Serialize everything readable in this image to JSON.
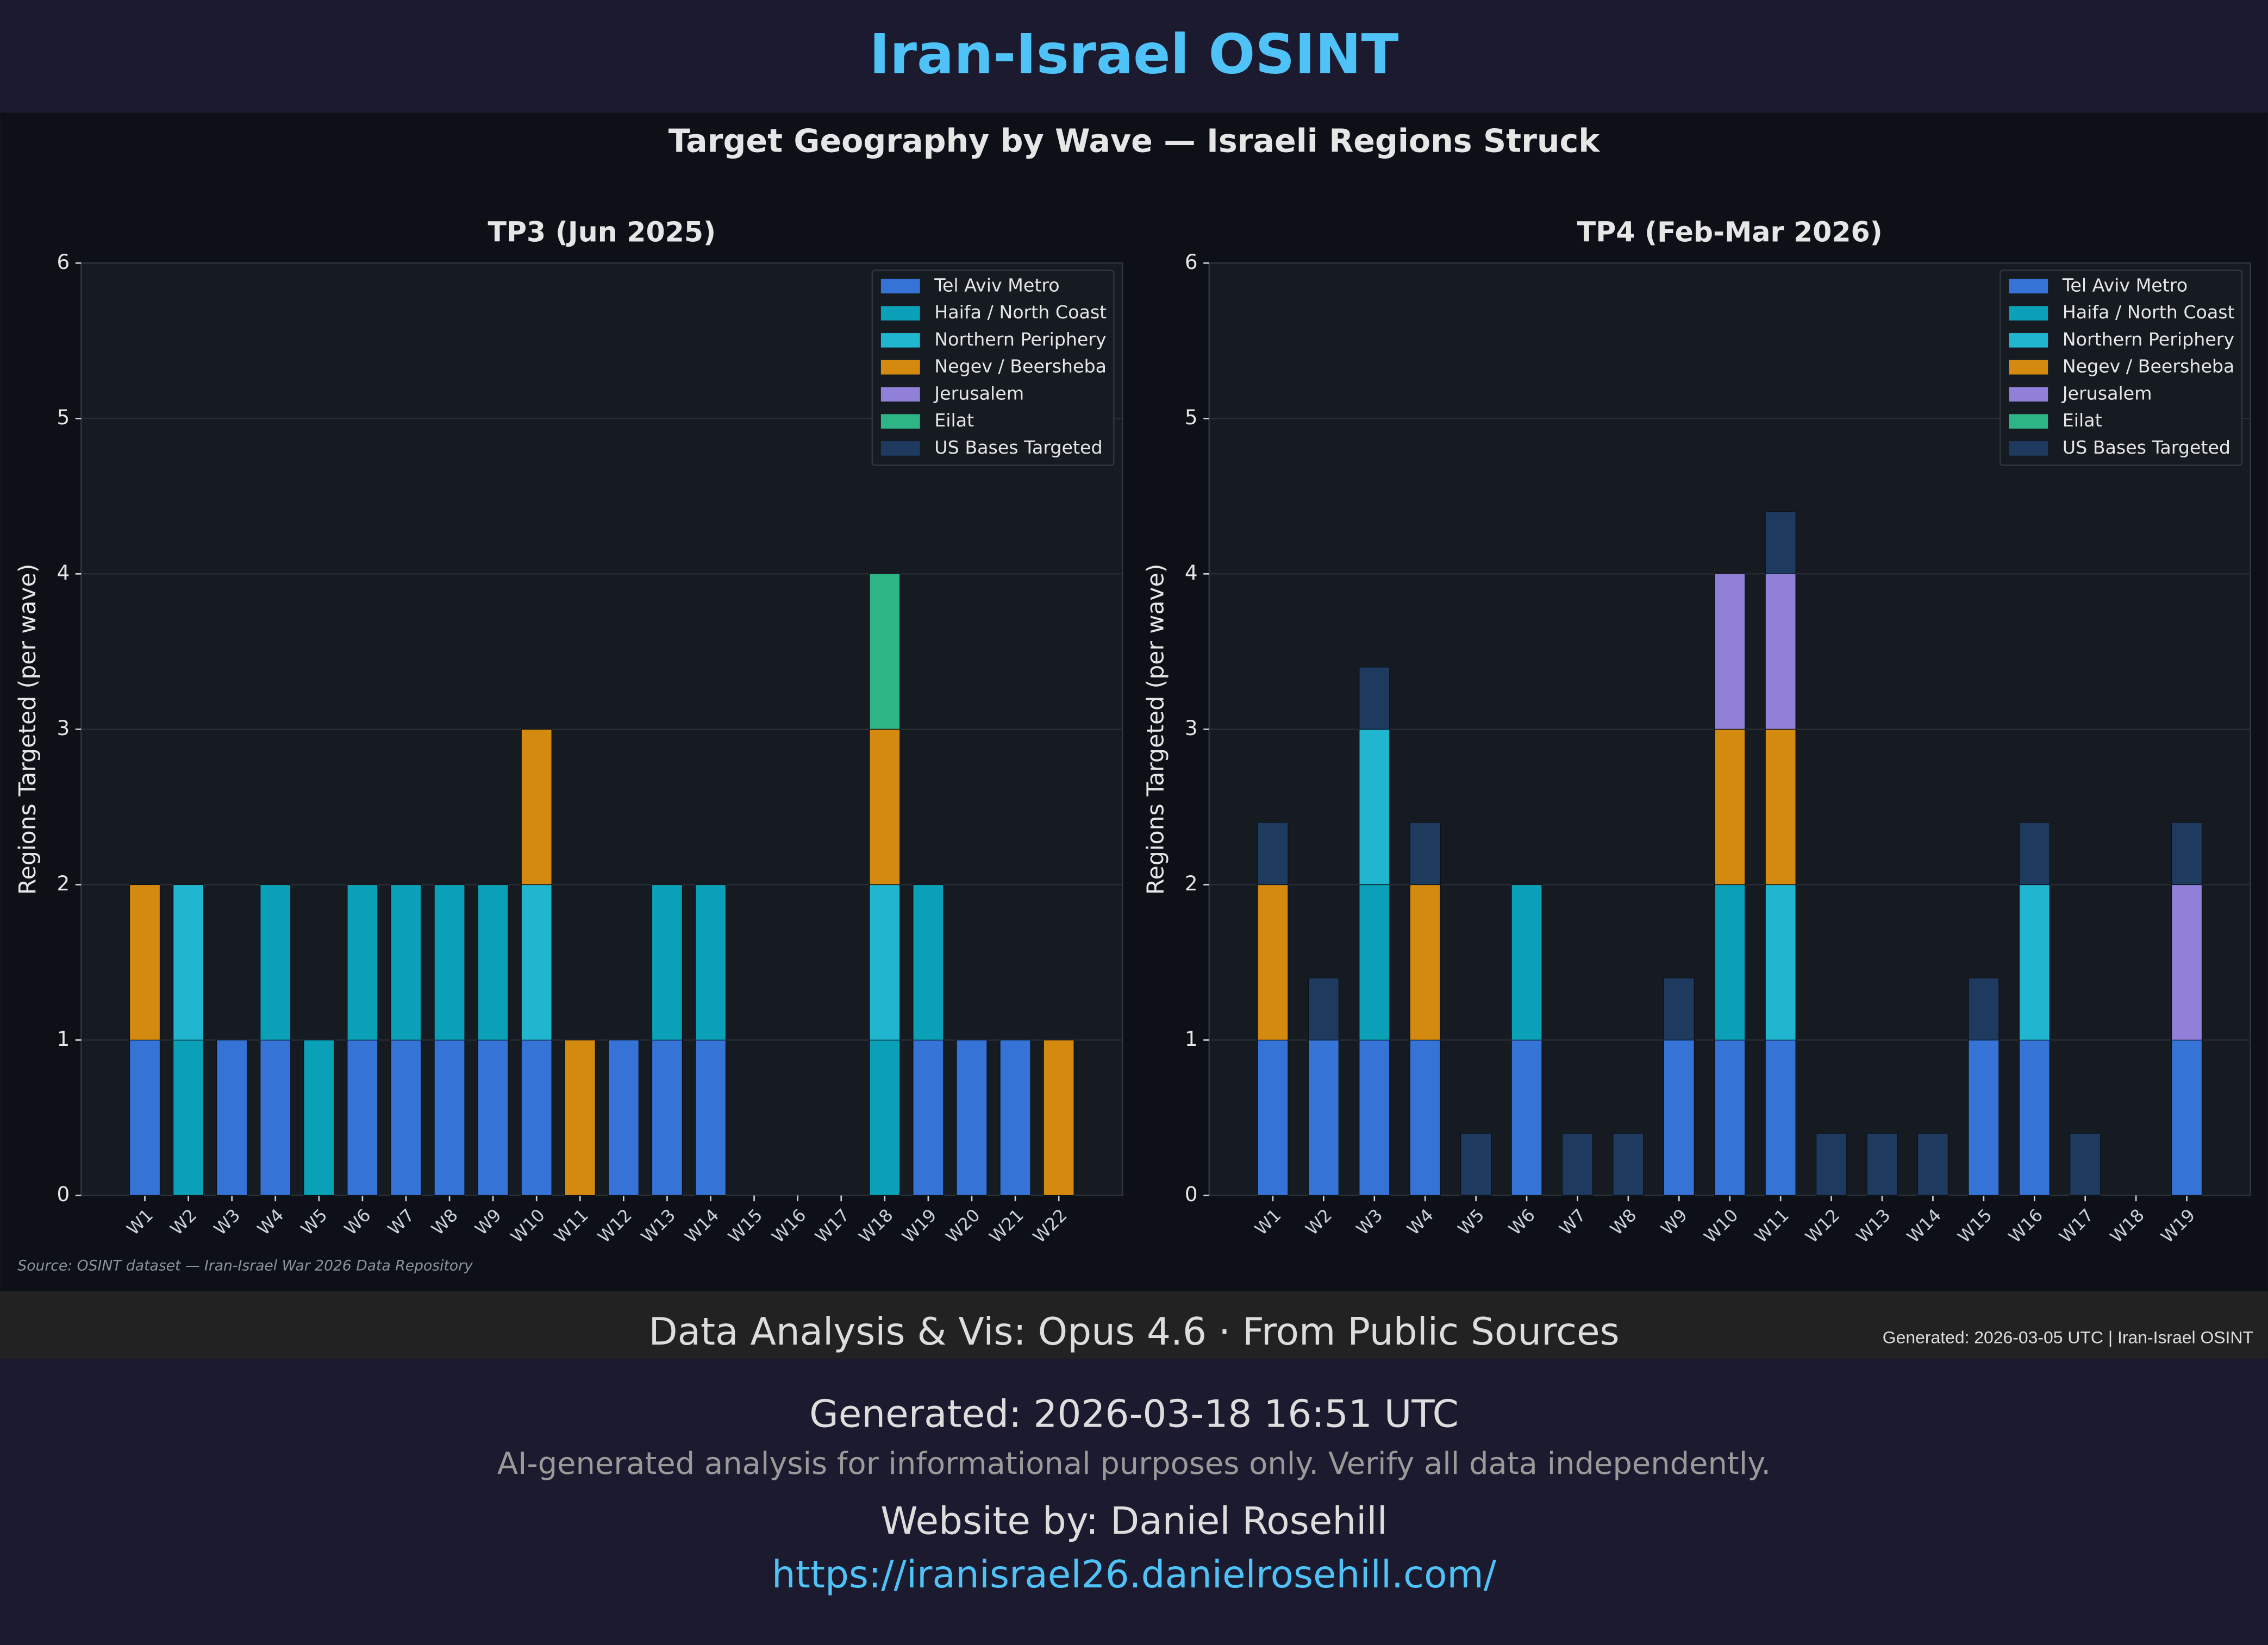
{
  "header": {
    "title": "Iran-Israel OSINT"
  },
  "figure": {
    "suptitle": "Target Geography by Wave — Israeli Regions Struck",
    "source": "Source: OSINT dataset — Iran-Israel War 2026 Data Repository"
  },
  "chart_data": [
    {
      "type": "bar",
      "stacked": true,
      "title": "TP3 (Jun 2025)",
      "y_label": "Regions Targeted (per wave)",
      "ylim": [
        0,
        6
      ],
      "yticks": [
        0,
        1,
        2,
        3,
        4,
        5,
        6
      ],
      "grid": true,
      "legend": "upper right",
      "categories": [
        "W1",
        "W2",
        "W3",
        "W4",
        "W5",
        "W6",
        "W7",
        "W8",
        "W9",
        "W10",
        "W11",
        "W12",
        "W13",
        "W14",
        "W15",
        "W16",
        "W17",
        "W18",
        "W19",
        "W20",
        "W21",
        "W22"
      ],
      "series": [
        {
          "name": "Tel Aviv Metro",
          "color": "#3573d6",
          "values": [
            1,
            0,
            1,
            1,
            0,
            1,
            1,
            1,
            1,
            1,
            0,
            1,
            1,
            1,
            0,
            0,
            0,
            0,
            1,
            1,
            1,
            0
          ]
        },
        {
          "name": "Haifa / North Coast",
          "color": "#0aa0b8",
          "values": [
            0,
            1,
            0,
            1,
            1,
            1,
            1,
            1,
            1,
            0,
            0,
            0,
            1,
            1,
            0,
            0,
            0,
            1,
            1,
            0,
            0,
            0
          ]
        },
        {
          "name": "Northern Periphery",
          "color": "#20b6cf",
          "values": [
            0,
            1,
            0,
            0,
            0,
            0,
            0,
            0,
            0,
            1,
            0,
            0,
            0,
            0,
            0,
            0,
            0,
            1,
            0,
            0,
            0,
            0
          ]
        },
        {
          "name": "Negev / Beersheba",
          "color": "#d4890f",
          "values": [
            1,
            0,
            0,
            0,
            0,
            0,
            0,
            0,
            0,
            1,
            1,
            0,
            0,
            0,
            0,
            0,
            0,
            1,
            0,
            0,
            0,
            1
          ]
        },
        {
          "name": "Jerusalem",
          "color": "#9080d8",
          "values": [
            0,
            0,
            0,
            0,
            0,
            0,
            0,
            0,
            0,
            0,
            0,
            0,
            0,
            0,
            0,
            0,
            0,
            0,
            0,
            0,
            0,
            0
          ]
        },
        {
          "name": "Eilat",
          "color": "#2db585",
          "values": [
            0,
            0,
            0,
            0,
            0,
            0,
            0,
            0,
            0,
            0,
            0,
            0,
            0,
            0,
            0,
            0,
            0,
            1,
            0,
            0,
            0,
            0
          ]
        },
        {
          "name": "US Bases Targeted",
          "color": "#1e3a5f",
          "values": [
            0,
            0,
            0,
            0,
            0,
            0,
            0,
            0,
            0,
            0,
            0,
            0,
            0,
            0,
            0,
            0,
            0,
            0,
            0,
            0,
            0,
            0
          ]
        }
      ]
    },
    {
      "type": "bar",
      "stacked": true,
      "title": "TP4 (Feb-Mar 2026)",
      "y_label": "Regions Targeted (per wave)",
      "ylim": [
        0,
        6
      ],
      "yticks": [
        0,
        1,
        2,
        3,
        4,
        5,
        6
      ],
      "grid": true,
      "legend": "upper right",
      "categories": [
        "W1",
        "W2",
        "W3",
        "W4",
        "W5",
        "W6",
        "W7",
        "W8",
        "W9",
        "W10",
        "W11",
        "W12",
        "W13",
        "W14",
        "W15",
        "W16",
        "W17",
        "W18",
        "W19"
      ],
      "series": [
        {
          "name": "Tel Aviv Metro",
          "color": "#3573d6",
          "values": [
            1,
            1,
            1,
            1,
            0,
            1,
            0,
            0,
            1,
            1,
            1,
            0,
            0,
            0,
            1,
            1,
            0,
            0,
            1
          ]
        },
        {
          "name": "Haifa / North Coast",
          "color": "#0aa0b8",
          "values": [
            0,
            0,
            1,
            0,
            0,
            1,
            0,
            0,
            0,
            1,
            0,
            0,
            0,
            0,
            0,
            0,
            0,
            0,
            0
          ]
        },
        {
          "name": "Northern Periphery",
          "color": "#20b6cf",
          "values": [
            0,
            0,
            1,
            0,
            0,
            0,
            0,
            0,
            0,
            0,
            1,
            0,
            0,
            0,
            0,
            1,
            0,
            0,
            0
          ]
        },
        {
          "name": "Negev / Beersheba",
          "color": "#d4890f",
          "values": [
            1,
            0,
            0,
            1,
            0,
            0,
            0,
            0,
            0,
            1,
            1,
            0,
            0,
            0,
            0,
            0,
            0,
            0,
            0
          ]
        },
        {
          "name": "Jerusalem",
          "color": "#9080d8",
          "values": [
            0,
            0,
            0,
            0,
            0,
            0,
            0,
            0,
            0,
            1,
            1,
            0,
            0,
            0,
            0,
            0,
            0,
            0,
            1
          ]
        },
        {
          "name": "Eilat",
          "color": "#2db585",
          "values": [
            0,
            0,
            0,
            0,
            0,
            0,
            0,
            0,
            0,
            0,
            0,
            0,
            0,
            0,
            0,
            0,
            0,
            0,
            0
          ]
        },
        {
          "name": "US Bases Targeted",
          "color": "#1e3a5f",
          "values": [
            0.4,
            0.4,
            0.4,
            0.4,
            0.4,
            0,
            0.4,
            0.4,
            0.4,
            0,
            0.4,
            0.4,
            0.4,
            0.4,
            0.4,
            0.4,
            0.4,
            0,
            0.4
          ]
        }
      ]
    }
  ],
  "footer": {
    "credit": "Data Analysis & Vis: Opus 4.6 · From Public Sources",
    "generated_small": "Generated: 2026-03-05 UTC | Iran-Israel OSINT",
    "generated": "Generated: 2026-03-18 16:51 UTC",
    "disclaimer": "AI-generated analysis for informational purposes only. Verify all data independently.",
    "website": "Website by: Daniel Rosehill",
    "url": "https://iranisrael26.danielrosehill.com/"
  }
}
